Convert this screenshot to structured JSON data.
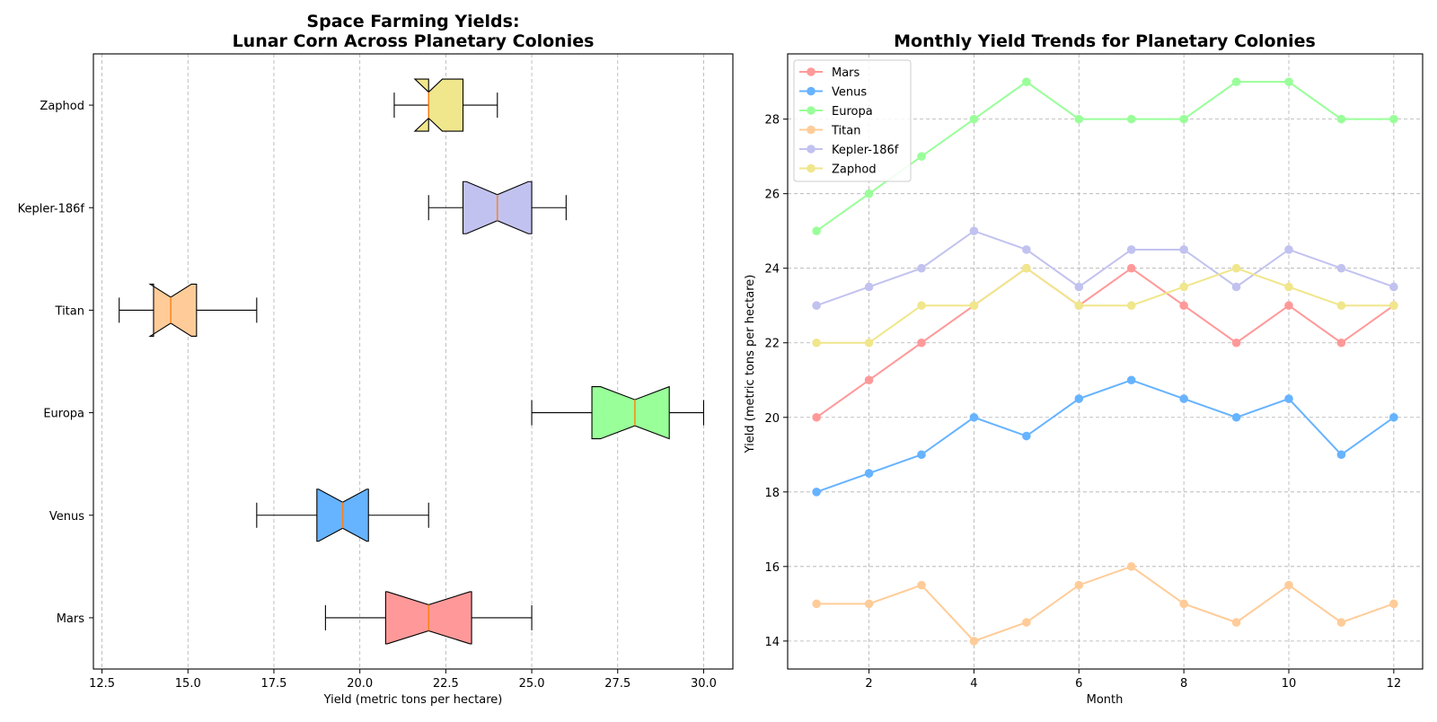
{
  "chart_data": [
    {
      "type": "box",
      "orientation": "horizontal",
      "notched": true,
      "title_lines": [
        "Space Farming Yields:",
        "Lunar Corn Across Planetary Colonies"
      ],
      "xlabel": "Yield (metric tons per hectare)",
      "ylabel": "",
      "xlim": [
        12.25,
        30.85
      ],
      "xticks": [
        12.5,
        15.0,
        17.5,
        20.0,
        22.5,
        25.0,
        27.5,
        30.0
      ],
      "xtick_labels": [
        "12.5",
        "15.0",
        "17.5",
        "20.0",
        "22.5",
        "25.0",
        "27.5",
        "30.0"
      ],
      "grid": {
        "x": true,
        "y": false,
        "style": "dashed"
      },
      "categories": [
        "Mars",
        "Venus",
        "Europa",
        "Titan",
        "Kepler-186f",
        "Zaphod"
      ],
      "boxes": [
        {
          "name": "Mars",
          "whisker_low": 19,
          "q1": 20.75,
          "median": 22,
          "q3": 23.25,
          "whisker_high": 25,
          "notch_low": 20.8,
          "notch_high": 23.2,
          "color": "#ff9999"
        },
        {
          "name": "Venus",
          "whisker_low": 17,
          "q1": 18.75,
          "median": 19.5,
          "q3": 20.25,
          "whisker_high": 22,
          "notch_low": 18.8,
          "notch_high": 20.2,
          "color": "#66b3ff"
        },
        {
          "name": "Europa",
          "whisker_low": 25,
          "q1": 26.75,
          "median": 28,
          "q3": 29,
          "whisker_high": 30,
          "notch_low": 27.0,
          "notch_high": 29.0,
          "color": "#99ff99"
        },
        {
          "name": "Titan",
          "whisker_low": 13,
          "q1": 14,
          "median": 14.5,
          "q3": 15.25,
          "whisker_high": 17,
          "notch_low": 13.9,
          "notch_high": 15.1,
          "color": "#ffcc99"
        },
        {
          "name": "Kepler-186f",
          "whisker_low": 22,
          "q1": 23,
          "median": 24,
          "q3": 25,
          "whisker_high": 26,
          "notch_low": 23.1,
          "notch_high": 24.9,
          "color": "#c2c2f0"
        },
        {
          "name": "Zaphod",
          "whisker_low": 21,
          "q1": 22,
          "median": 22,
          "q3": 23,
          "whisker_high": 24,
          "notch_low": 21.6,
          "notch_high": 22.4,
          "color": "#f0e68c"
        }
      ],
      "median_color": "#ff7f0e"
    },
    {
      "type": "line",
      "markers": true,
      "title": "Monthly Yield Trends for Planetary Colonies",
      "xlabel": "Month",
      "ylabel": "Yield (metric tons per hectare)",
      "xlim": [
        0.45,
        12.55
      ],
      "ylim": [
        13.25,
        29.75
      ],
      "xticks": [
        2,
        4,
        6,
        8,
        10,
        12
      ],
      "yticks": [
        14,
        16,
        18,
        20,
        22,
        24,
        26,
        28
      ],
      "grid": {
        "x": true,
        "y": true,
        "style": "dashed"
      },
      "legend": "top-left",
      "x": [
        1,
        2,
        3,
        4,
        5,
        6,
        7,
        8,
        9,
        10,
        11,
        12
      ],
      "series": [
        {
          "name": "Mars",
          "values": [
            20,
            21,
            22,
            23,
            24,
            23,
            24,
            23,
            22,
            23,
            22,
            23
          ],
          "color": "#ff9999"
        },
        {
          "name": "Venus",
          "values": [
            18,
            18.5,
            19,
            20,
            19.5,
            20.5,
            21,
            20.5,
            20,
            20.5,
            19,
            20
          ],
          "color": "#66b3ff"
        },
        {
          "name": "Europa",
          "values": [
            25,
            26,
            27,
            28,
            29,
            28,
            28,
            28,
            29,
            29,
            28,
            28
          ],
          "color": "#99ff99"
        },
        {
          "name": "Titan",
          "values": [
            15,
            15,
            15.5,
            14,
            14.5,
            15.5,
            16,
            15,
            14.5,
            15.5,
            14.5,
            15
          ],
          "color": "#ffcc99"
        },
        {
          "name": "Kepler-186f",
          "values": [
            23,
            23.5,
            24,
            25,
            24.5,
            23.5,
            24.5,
            24.5,
            23.5,
            24.5,
            24,
            23.5
          ],
          "color": "#c2c2f0"
        },
        {
          "name": "Zaphod",
          "values": [
            22,
            22,
            23,
            23,
            24,
            23,
            23,
            23.5,
            24,
            23.5,
            23,
            23
          ],
          "color": "#f0e68c"
        }
      ]
    }
  ]
}
